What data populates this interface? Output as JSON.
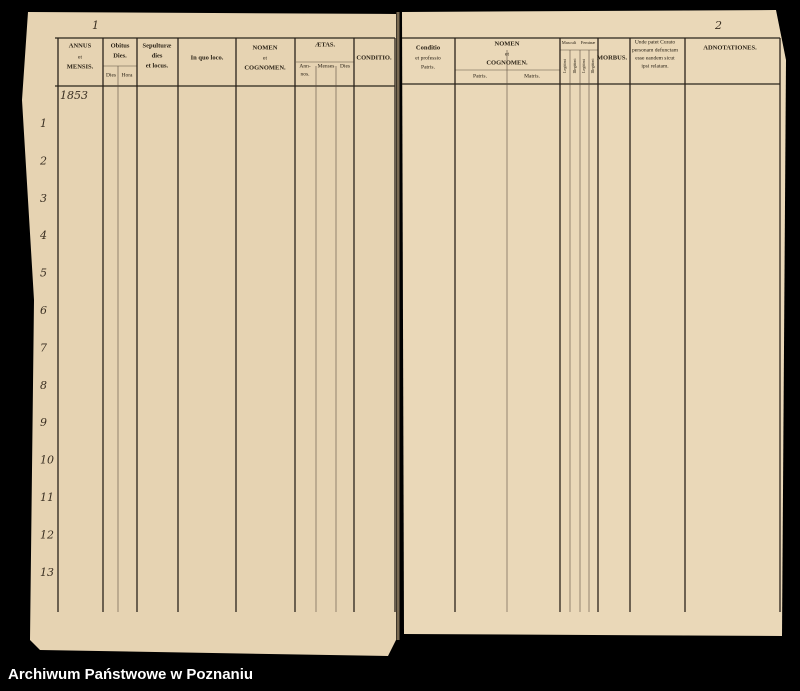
{
  "left_page": {
    "page_number": "1",
    "year": "1853",
    "headers": {
      "annus": "ANNUS",
      "et": "et",
      "mensis": "MENSIS.",
      "obitus": "Obitus",
      "obitus_dies": "Dies.",
      "dies": "Dies",
      "hora": "Hora",
      "sepulturae": "Sepulturæ",
      "sep_dies": "dies",
      "sep_locus": "et locus.",
      "in_quo_loco": "In quo loco.",
      "nomen": "NOMEN",
      "nomen_et": "et",
      "cognomen": "COGNOMEN.",
      "aetas": "ÆTAS.",
      "annos": "Ann-",
      "annos2": "nos.",
      "menses": "Menses",
      "dies2": "Dies",
      "conditio": "CONDITIO."
    },
    "row_numbers": [
      "1",
      "2",
      "3",
      "4",
      "5",
      "6",
      "7",
      "8",
      "9",
      "10",
      "11",
      "12",
      "13"
    ]
  },
  "right_page": {
    "page_number": "2",
    "headers": {
      "conditio": "Conditio",
      "professio": "et professio",
      "patris": "Patris.",
      "nomen": "NOMEN",
      "et": "et",
      "cognomen": "COGNOMEN.",
      "patris2": "Patris.",
      "matris": "Matris.",
      "masculi": "Masculi",
      "feminae": "Feminæ",
      "legitimi": "Legitimi",
      "illegitimi": "Illegitimi",
      "morbus": "MORBUS.",
      "unde1": "Unde patet Curato",
      "unde2": "personam defunctam",
      "unde3": "esse eandem sicut",
      "unde4": "ipsi relatam.",
      "adnotationes": "ADNOTATIONES."
    }
  },
  "footer": "Archiwum Państwowe w Poznaniu"
}
